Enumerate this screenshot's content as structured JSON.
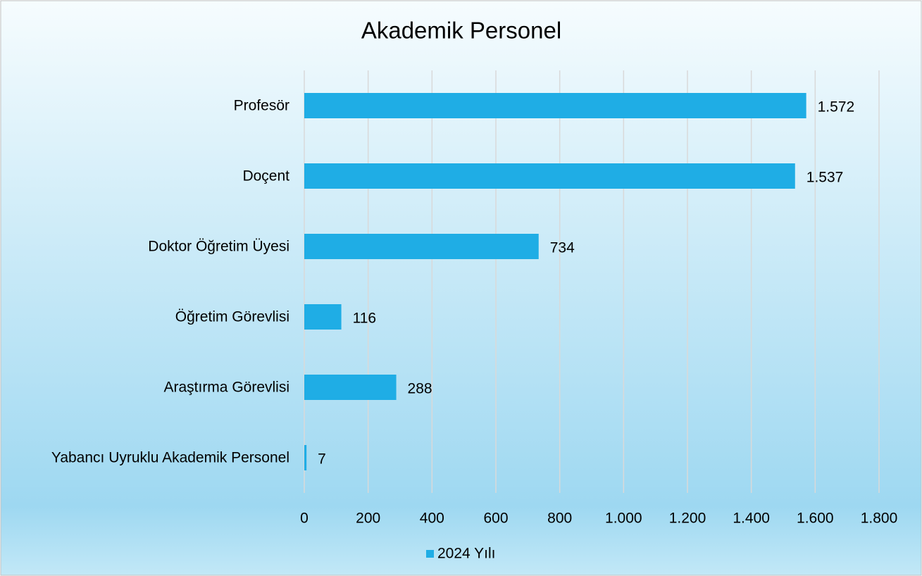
{
  "chart_data": {
    "type": "hbar",
    "title": "Akademik Personel",
    "categories": [
      "Profesör",
      "Doçent",
      "Doktor Öğretim Üyesi",
      "Öğretim Görevlisi",
      "Araştırma Görevlisi",
      "Yabancı Uyruklu Akademik Personel"
    ],
    "series": [
      {
        "name": "2024 Yılı",
        "color": "#1fade5",
        "values": [
          1572,
          1537,
          734,
          116,
          288,
          7
        ],
        "value_labels": [
          "1.572",
          "1.537",
          "734",
          "116",
          "288",
          "7"
        ]
      }
    ],
    "xlim": [
      0,
      1800
    ],
    "xticks": [
      0,
      200,
      400,
      600,
      800,
      {
        "value": 1000,
        "label": "1.000"
      },
      {
        "value": 1200,
        "label": "1.200"
      },
      {
        "value": 1400,
        "label": "1.400"
      },
      {
        "value": 1600,
        "label": "1.600"
      },
      {
        "value": 1800,
        "label": "1.800"
      }
    ],
    "grid": true,
    "legend": "bottom"
  }
}
